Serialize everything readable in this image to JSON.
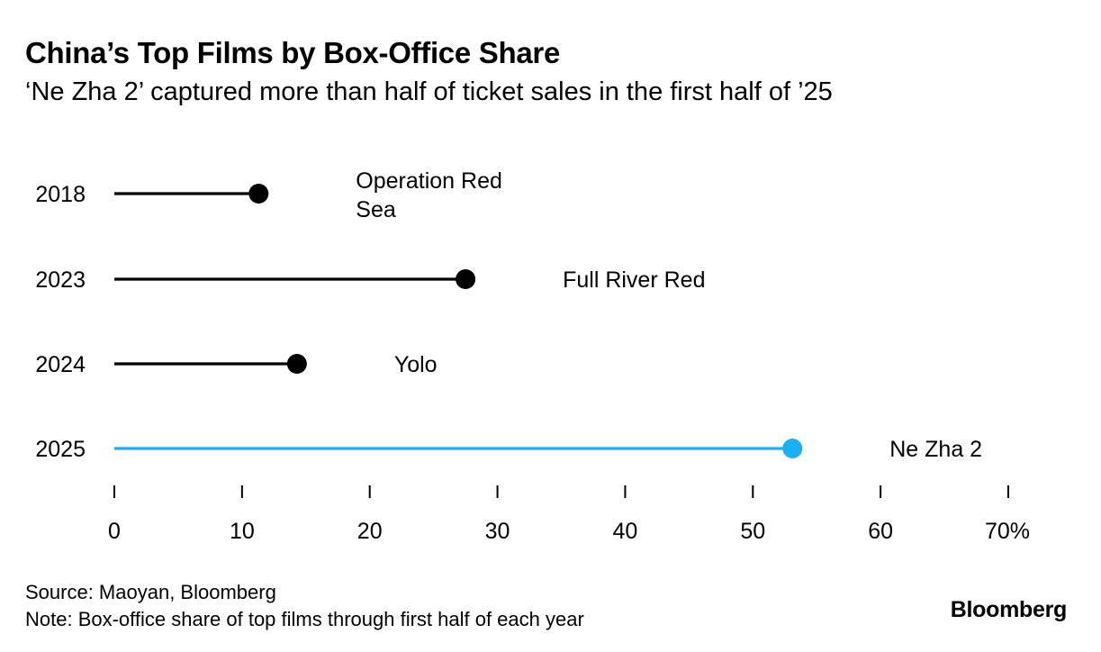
{
  "header": {
    "title": "China’s Top Films by Box-Office Share",
    "subtitle": "‘Ne Zha 2’ captured more than half of ticket sales in the first half of ’25"
  },
  "chart_data": {
    "type": "lollipop",
    "categories": [
      "2018",
      "2023",
      "2024",
      "2025"
    ],
    "values": [
      11.3,
      27.5,
      14.3,
      53.1
    ],
    "point_labels": [
      [
        "Operation Red",
        "Sea"
      ],
      [
        "Full River Red"
      ],
      [
        "Yolo"
      ],
      [
        "Ne Zha 2"
      ]
    ],
    "highlight_index": 3,
    "x_ticks": [
      "0",
      "10",
      "20",
      "30",
      "40",
      "50",
      "60",
      "70%"
    ],
    "xlim": [
      0,
      70
    ],
    "grid": false,
    "colors": {
      "default": "#000000",
      "highlight": "#1ab0f5"
    }
  },
  "footer": {
    "source": "Source: Maoyan, Bloomberg",
    "note": "Note: Box-office share of top films through first half of each year"
  },
  "brand": {
    "logo": "Bloomberg"
  }
}
